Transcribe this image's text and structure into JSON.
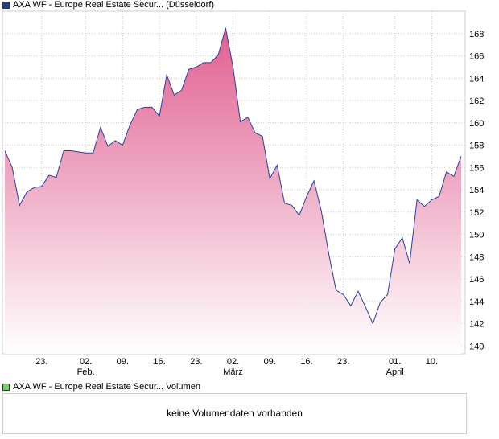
{
  "price_panel": {
    "legend_label": "AXA WF - Europe Real Estate Secur... (Düsseldorf)",
    "legend_color": "#1f3f8f"
  },
  "volume_panel": {
    "legend_label": "AXA WF - Europe Real Estate Secur... Volumen",
    "legend_color": "#7ccf6e",
    "message": "keine Volumendaten vorhanden"
  },
  "colors": {
    "line": "#2b3ea0",
    "fill_top": "#e0608f",
    "fill_bottom": "#ffffff",
    "grid": "#c8c8c8"
  },
  "chart_data": {
    "type": "area",
    "y_ticks": [
      140,
      142,
      144,
      146,
      148,
      150,
      152,
      154,
      156,
      158,
      160,
      162,
      164,
      166,
      168
    ],
    "ylim": [
      139.3,
      170
    ],
    "x_ticks": [
      {
        "label": "23.",
        "month": "",
        "pos": 5
      },
      {
        "label": "02.",
        "month": "Feb.",
        "pos": 11
      },
      {
        "label": "09.",
        "month": "",
        "pos": 16
      },
      {
        "label": "16.",
        "month": "",
        "pos": 21
      },
      {
        "label": "23.",
        "month": "",
        "pos": 26
      },
      {
        "label": "02.",
        "month": "März",
        "pos": 31
      },
      {
        "label": "09.",
        "month": "",
        "pos": 36
      },
      {
        "label": "16.",
        "month": "",
        "pos": 41
      },
      {
        "label": "23.",
        "month": "",
        "pos": 46
      },
      {
        "label": "01.",
        "month": "April",
        "pos": 53
      },
      {
        "label": "10.",
        "month": "",
        "pos": 58
      }
    ],
    "x_count": 63,
    "values": [
      157.5,
      156.0,
      152.6,
      153.8,
      154.2,
      154.3,
      155.3,
      155.1,
      157.5,
      157.5,
      157.4,
      157.3,
      157.3,
      159.6,
      157.9,
      158.4,
      158.0,
      159.8,
      161.2,
      161.4,
      161.4,
      160.6,
      164.3,
      162.5,
      162.9,
      164.8,
      165.0,
      165.4,
      165.4,
      166.1,
      168.5,
      165.0,
      160.1,
      160.5,
      159.1,
      158.8,
      155.0,
      156.2,
      152.8,
      152.6,
      151.7,
      153.4,
      154.8,
      152.1,
      148.3,
      145.0,
      144.6,
      143.6,
      144.9,
      143.5,
      142.0,
      143.9,
      144.6,
      148.7,
      149.7,
      147.4,
      153.1,
      152.5,
      153.1,
      153.4,
      155.6,
      155.2,
      157.0
    ]
  }
}
